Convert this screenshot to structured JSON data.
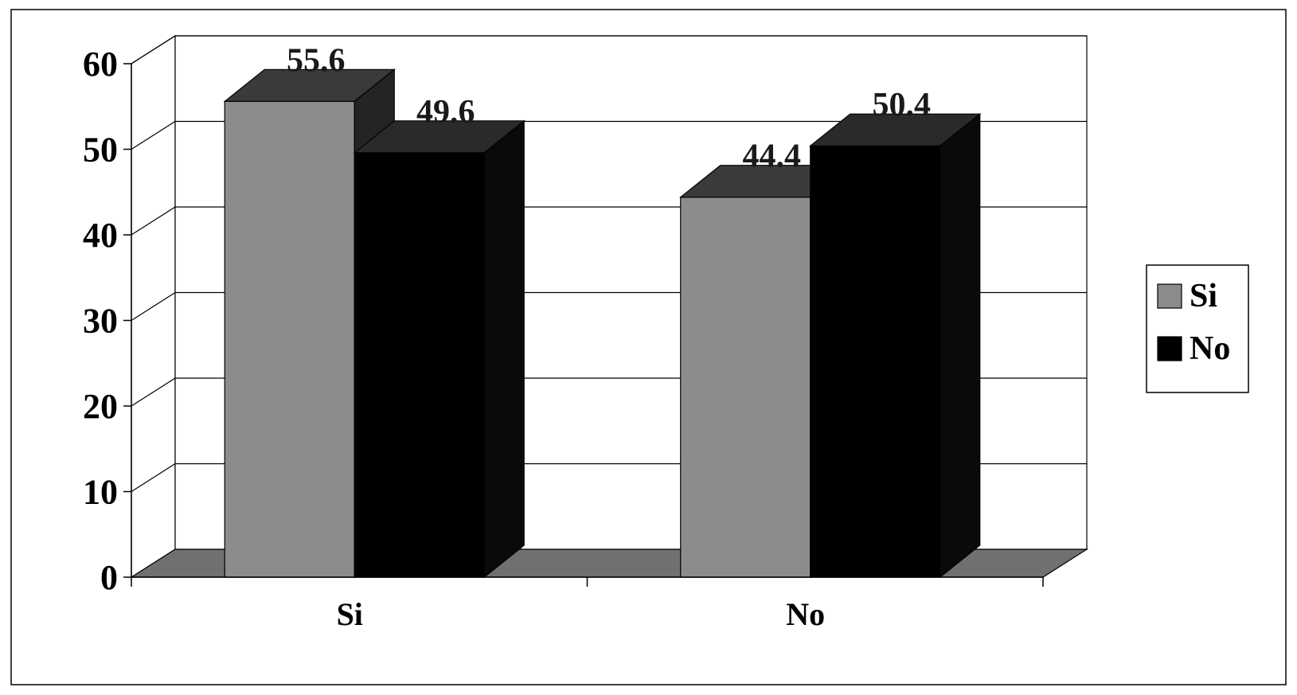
{
  "chart_data": {
    "type": "bar",
    "title": "",
    "xlabel": "",
    "ylabel": "",
    "categories": [
      "Si",
      "No"
    ],
    "series": [
      {
        "name": "Si",
        "values": [
          55.6,
          44.4
        ],
        "color": "#8c8c8c"
      },
      {
        "name": "No",
        "values": [
          49.6,
          50.4
        ],
        "color": "#000000"
      }
    ],
    "data_labels": [
      [
        "55.6",
        "44.4"
      ],
      [
        "49.6",
        "50.4"
      ]
    ],
    "ylim": [
      0,
      60
    ],
    "yticks": [
      0,
      10,
      20,
      30,
      40,
      50,
      60
    ],
    "ytick_labels": [
      "0",
      "10",
      "20",
      "30",
      "40",
      "50",
      "60"
    ],
    "grid": true,
    "legend": "right",
    "style": "3d-clustered-column"
  }
}
